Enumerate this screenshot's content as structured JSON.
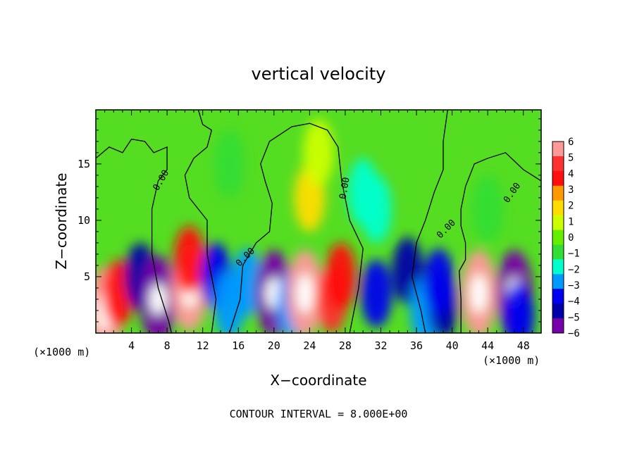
{
  "chart_data": {
    "type": "heatmap",
    "title": "vertical velocity",
    "xlabel": "X−coordinate",
    "ylabel": "Z−coordinate",
    "x_unit_left": "(×1000 m)",
    "x_unit_right": "(×1000 m)",
    "x_ticks": [
      "4",
      "8",
      "12",
      "16",
      "20",
      "24",
      "28",
      "32",
      "36",
      "40",
      "44",
      "48"
    ],
    "y_ticks": [
      "5",
      "10",
      "15"
    ],
    "xlim": [
      0,
      50
    ],
    "ylim": [
      0,
      19.8
    ],
    "contour_label": "0.00",
    "footer": "CONTOUR INTERVAL = 8.000E+00",
    "colorbar": {
      "min": -6,
      "max": 6,
      "labels": [
        "6",
        "5",
        "4",
        "3",
        "2",
        "1",
        "0",
        "−1",
        "−2",
        "−3",
        "−4",
        "−5",
        "−6"
      ],
      "colors": [
        "#ff9999",
        "#ff3030",
        "#ff1010",
        "#ff9900",
        "#ffdd00",
        "#ccff00",
        "#66ee00",
        "#33dd33",
        "#00ffcc",
        "#0099ff",
        "#0000ee",
        "#0000aa",
        "#7700aa"
      ]
    },
    "cells": [
      {
        "x": 1,
        "z": 2,
        "w": 5.6
      },
      {
        "x": 2.5,
        "z": 3.5,
        "w": 4
      },
      {
        "x": 5,
        "z": 5,
        "w": -5
      },
      {
        "x": 7,
        "z": 3,
        "w": -5.5
      },
      {
        "x": 10.5,
        "z": 4,
        "w": 6
      },
      {
        "x": 10.5,
        "z": 6.5,
        "w": 4
      },
      {
        "x": 13.5,
        "z": 5,
        "w": -4
      },
      {
        "x": 15,
        "z": 2.5,
        "w": -3
      },
      {
        "x": 17,
        "z": 4.5,
        "w": -2.5
      },
      {
        "x": 20,
        "z": 3.5,
        "w": -5.5
      },
      {
        "x": 22,
        "z": 2.5,
        "w": -3
      },
      {
        "x": 23.5,
        "z": 3.5,
        "w": 6
      },
      {
        "x": 26.5,
        "z": 3,
        "w": 5
      },
      {
        "x": 27.5,
        "z": 5,
        "w": 4
      },
      {
        "x": 31.5,
        "z": 3.5,
        "w": -4
      },
      {
        "x": 35,
        "z": 5.5,
        "w": -5
      },
      {
        "x": 37,
        "z": 2,
        "w": -3
      },
      {
        "x": 39,
        "z": 2.5,
        "w": -4.5
      },
      {
        "x": 38.5,
        "z": 4.5,
        "w": -4
      },
      {
        "x": 43,
        "z": 3.5,
        "w": 6
      },
      {
        "x": 47,
        "z": 3.5,
        "w": -5.5
      },
      {
        "x": 47.5,
        "z": 1.5,
        "w": -4
      },
      {
        "x": 24,
        "z": 12,
        "w": 2
      },
      {
        "x": 30,
        "z": 12.5,
        "w": -2
      },
      {
        "x": 31.5,
        "z": 11,
        "w": -1.5
      },
      {
        "x": 15,
        "z": 15,
        "w": -1
      },
      {
        "x": 25,
        "z": 16,
        "w": 0.8
      },
      {
        "x": 44,
        "z": 11,
        "w": -0.5
      }
    ]
  }
}
